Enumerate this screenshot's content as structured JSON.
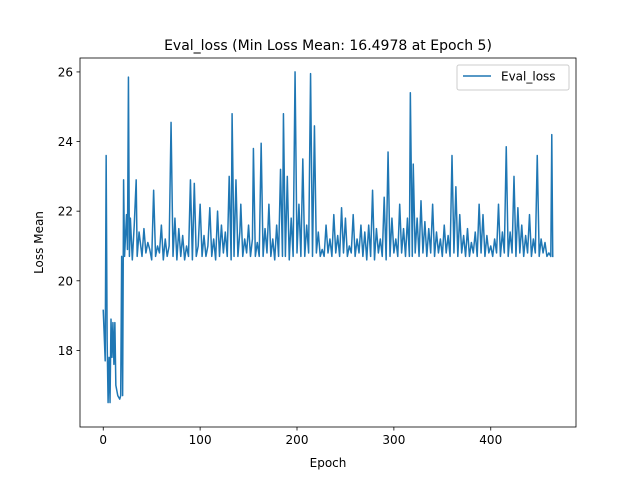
{
  "chart_data": {
    "type": "line",
    "title": "Eval_loss (Min Loss Mean: 16.4978 at Epoch 5)",
    "xlabel": "Epoch",
    "ylabel": "Loss Mean",
    "xlim": [
      -24,
      488
    ],
    "ylim": [
      15.8,
      26.4
    ],
    "xticks": [
      0,
      100,
      200,
      300,
      400
    ],
    "yticks": [
      18,
      20,
      22,
      24,
      26
    ],
    "grid": false,
    "legend": "top-right",
    "series": [
      {
        "name": "Eval_loss",
        "color": "#1f77b4",
        "points": [
          [
            0,
            19.15
          ],
          [
            2,
            17.7
          ],
          [
            3,
            23.6
          ],
          [
            4,
            18.3
          ],
          [
            5,
            16.5
          ],
          [
            6,
            17.8
          ],
          [
            7,
            16.5
          ],
          [
            8,
            18.9
          ],
          [
            9,
            17.8
          ],
          [
            10,
            18.8
          ],
          [
            11,
            17.6
          ],
          [
            12,
            18.8
          ],
          [
            13,
            17.0
          ],
          [
            15,
            16.7
          ],
          [
            17,
            16.6
          ],
          [
            18,
            16.7
          ],
          [
            19,
            20.7
          ],
          [
            20,
            16.7
          ],
          [
            21,
            22.9
          ],
          [
            22,
            20.7
          ],
          [
            24,
            21.9
          ],
          [
            25,
            20.9
          ],
          [
            26,
            25.85
          ],
          [
            27,
            20.7
          ],
          [
            28,
            21.8
          ],
          [
            30,
            20.6
          ],
          [
            32,
            21.6
          ],
          [
            34,
            22.9
          ],
          [
            35,
            20.7
          ],
          [
            37,
            21.4
          ],
          [
            40,
            20.7
          ],
          [
            42,
            21.5
          ],
          [
            44,
            20.8
          ],
          [
            46,
            21.1
          ],
          [
            48,
            20.9
          ],
          [
            50,
            20.6
          ],
          [
            52,
            22.6
          ],
          [
            54,
            20.7
          ],
          [
            56,
            21.0
          ],
          [
            58,
            20.8
          ],
          [
            60,
            21.6
          ],
          [
            62,
            20.6
          ],
          [
            64,
            21.2
          ],
          [
            66,
            20.7
          ],
          [
            68,
            21.0
          ],
          [
            70,
            24.55
          ],
          [
            72,
            20.7
          ],
          [
            74,
            21.8
          ],
          [
            76,
            20.6
          ],
          [
            78,
            21.5
          ],
          [
            80,
            20.7
          ],
          [
            82,
            21.3
          ],
          [
            84,
            20.6
          ],
          [
            86,
            21.0
          ],
          [
            88,
            20.7
          ],
          [
            90,
            22.9
          ],
          [
            92,
            20.6
          ],
          [
            94,
            22.8
          ],
          [
            96,
            20.7
          ],
          [
            98,
            21.0
          ],
          [
            100,
            22.2
          ],
          [
            102,
            20.7
          ],
          [
            104,
            21.3
          ],
          [
            106,
            20.7
          ],
          [
            108,
            21.0
          ],
          [
            110,
            22.1
          ],
          [
            112,
            20.7
          ],
          [
            114,
            21.2
          ],
          [
            116,
            20.6
          ],
          [
            118,
            22.0
          ],
          [
            120,
            20.7
          ],
          [
            122,
            21.6
          ],
          [
            124,
            20.8
          ],
          [
            126,
            21.4
          ],
          [
            128,
            20.7
          ],
          [
            130,
            23.0
          ],
          [
            132,
            20.6
          ],
          [
            133,
            24.8
          ],
          [
            135,
            20.7
          ],
          [
            137,
            22.9
          ],
          [
            139,
            20.7
          ],
          [
            141,
            21.4
          ],
          [
            142,
            22.2
          ],
          [
            144,
            20.7
          ],
          [
            146,
            21.2
          ],
          [
            148,
            20.8
          ],
          [
            150,
            21.6
          ],
          [
            152,
            20.7
          ],
          [
            154,
            21.2
          ],
          [
            155,
            23.8
          ],
          [
            157,
            20.7
          ],
          [
            159,
            21.1
          ],
          [
            161,
            20.7
          ],
          [
            163,
            23.95
          ],
          [
            165,
            20.7
          ],
          [
            167,
            21.5
          ],
          [
            169,
            20.8
          ],
          [
            171,
            22.2
          ],
          [
            173,
            20.7
          ],
          [
            175,
            21.2
          ],
          [
            177,
            20.6
          ],
          [
            179,
            21.6
          ],
          [
            181,
            20.7
          ],
          [
            183,
            23.2
          ],
          [
            185,
            20.7
          ],
          [
            186,
            24.8
          ],
          [
            188,
            20.7
          ],
          [
            190,
            23.0
          ],
          [
            192,
            20.6
          ],
          [
            194,
            21.8
          ],
          [
            196,
            20.7
          ],
          [
            198,
            26.0
          ],
          [
            200,
            20.8
          ],
          [
            202,
            22.2
          ],
          [
            204,
            20.7
          ],
          [
            206,
            23.5
          ],
          [
            208,
            20.7
          ],
          [
            210,
            21.6
          ],
          [
            212,
            20.8
          ],
          [
            214,
            25.95
          ],
          [
            216,
            20.7
          ],
          [
            218,
            24.45
          ],
          [
            220,
            20.8
          ],
          [
            222,
            21.4
          ],
          [
            224,
            20.7
          ],
          [
            226,
            20.9
          ],
          [
            228,
            20.7
          ],
          [
            230,
            21.6
          ],
          [
            232,
            20.8
          ],
          [
            234,
            21.2
          ],
          [
            236,
            20.7
          ],
          [
            238,
            21.9
          ],
          [
            240,
            20.8
          ],
          [
            242,
            21.3
          ],
          [
            244,
            20.7
          ],
          [
            246,
            22.1
          ],
          [
            248,
            20.8
          ],
          [
            250,
            21.8
          ],
          [
            252,
            20.7
          ],
          [
            254,
            21.0
          ],
          [
            256,
            20.8
          ],
          [
            258,
            21.9
          ],
          [
            260,
            20.7
          ],
          [
            262,
            21.2
          ],
          [
            264,
            20.8
          ],
          [
            266,
            21.6
          ],
          [
            268,
            20.7
          ],
          [
            270,
            21.4
          ],
          [
            272,
            20.6
          ],
          [
            274,
            21.6
          ],
          [
            276,
            20.7
          ],
          [
            278,
            22.6
          ],
          [
            280,
            20.6
          ],
          [
            282,
            21.5
          ],
          [
            284,
            20.8
          ],
          [
            286,
            21.2
          ],
          [
            288,
            20.7
          ],
          [
            290,
            22.4
          ],
          [
            292,
            20.6
          ],
          [
            294,
            23.7
          ],
          [
            296,
            20.7
          ],
          [
            298,
            21.8
          ],
          [
            300,
            20.8
          ],
          [
            302,
            21.2
          ],
          [
            304,
            20.7
          ],
          [
            306,
            22.2
          ],
          [
            308,
            20.8
          ],
          [
            310,
            21.5
          ],
          [
            312,
            20.7
          ],
          [
            314,
            21.8
          ],
          [
            316,
            20.7
          ],
          [
            317,
            25.4
          ],
          [
            319,
            20.7
          ],
          [
            320,
            23.35
          ],
          [
            322,
            20.8
          ],
          [
            324,
            21.8
          ],
          [
            326,
            20.7
          ],
          [
            328,
            22.3
          ],
          [
            330,
            20.8
          ],
          [
            332,
            21.7
          ],
          [
            334,
            20.7
          ],
          [
            336,
            21.5
          ],
          [
            338,
            20.8
          ],
          [
            340,
            22.2
          ],
          [
            342,
            20.7
          ],
          [
            344,
            21.4
          ],
          [
            346,
            20.8
          ],
          [
            348,
            21.2
          ],
          [
            350,
            20.7
          ],
          [
            352,
            21.6
          ],
          [
            354,
            20.8
          ],
          [
            356,
            21.3
          ],
          [
            358,
            20.7
          ],
          [
            360,
            23.6
          ],
          [
            362,
            20.8
          ],
          [
            364,
            22.7
          ],
          [
            366,
            20.7
          ],
          [
            368,
            21.9
          ],
          [
            370,
            20.8
          ],
          [
            372,
            21.3
          ],
          [
            374,
            20.7
          ],
          [
            376,
            21.5
          ],
          [
            378,
            20.7
          ],
          [
            380,
            21.1
          ],
          [
            382,
            20.8
          ],
          [
            384,
            21.4
          ],
          [
            386,
            20.7
          ],
          [
            388,
            22.2
          ],
          [
            390,
            20.8
          ],
          [
            392,
            21.9
          ],
          [
            394,
            20.7
          ],
          [
            396,
            21.3
          ],
          [
            398,
            20.8
          ],
          [
            400,
            21.0
          ],
          [
            402,
            20.7
          ],
          [
            404,
            21.2
          ],
          [
            406,
            20.8
          ],
          [
            408,
            22.2
          ],
          [
            410,
            20.7
          ],
          [
            412,
            21.4
          ],
          [
            414,
            20.8
          ],
          [
            416,
            23.85
          ],
          [
            418,
            20.7
          ],
          [
            420,
            21.4
          ],
          [
            422,
            20.8
          ],
          [
            424,
            23.0
          ],
          [
            426,
            20.7
          ],
          [
            428,
            22.1
          ],
          [
            430,
            20.8
          ],
          [
            432,
            21.6
          ],
          [
            434,
            20.7
          ],
          [
            436,
            21.3
          ],
          [
            438,
            20.8
          ],
          [
            440,
            21.9
          ],
          [
            442,
            20.7
          ],
          [
            444,
            21.2
          ],
          [
            446,
            20.8
          ],
          [
            448,
            23.6
          ],
          [
            450,
            20.7
          ],
          [
            452,
            21.2
          ],
          [
            454,
            20.8
          ],
          [
            456,
            21.1
          ],
          [
            458,
            20.7
          ],
          [
            460,
            20.8
          ],
          [
            462,
            20.7
          ],
          [
            463,
            24.2
          ],
          [
            464,
            20.7
          ]
        ]
      }
    ]
  }
}
